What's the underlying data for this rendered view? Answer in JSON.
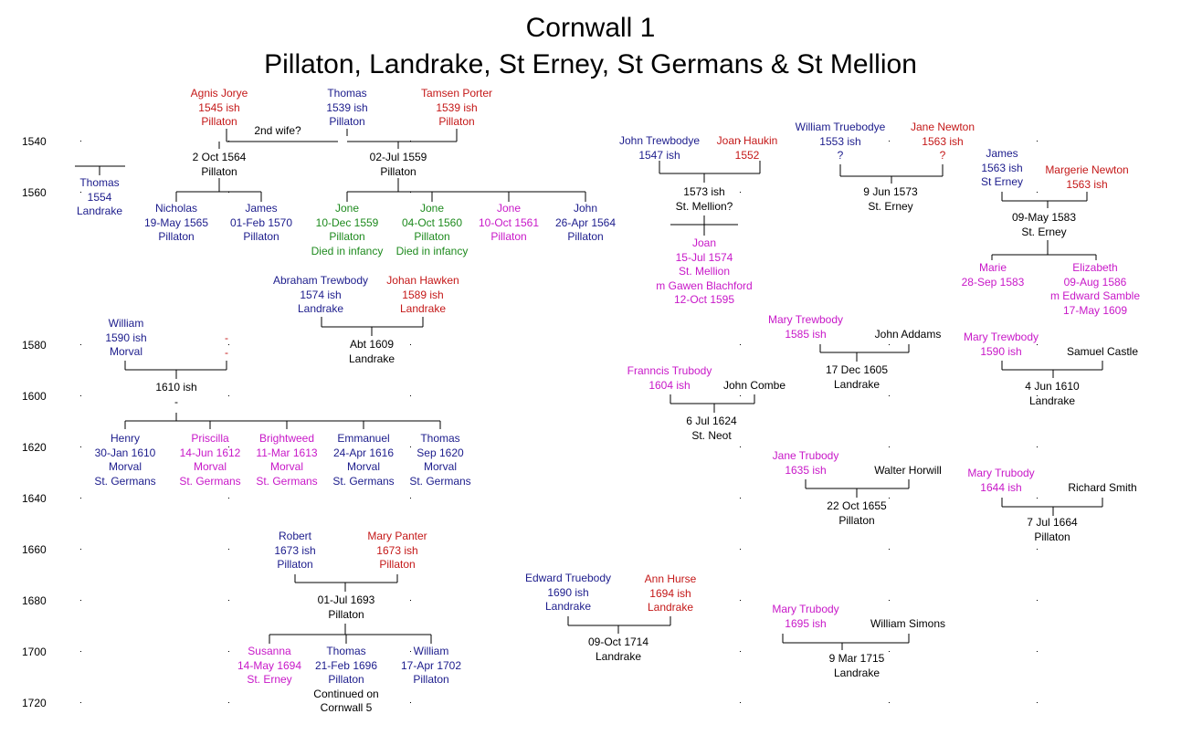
{
  "title": {
    "line1": "Cornwall 1",
    "line2": "Pillaton, Landrake, St Erney, St Germans & St Mellion"
  },
  "years": [
    "1540",
    "1560",
    "1580",
    "1600",
    "1620",
    "1640",
    "1660",
    "1680",
    "1700",
    "1720"
  ],
  "colors": {
    "male": "#1c1c8c",
    "female": "#c41818",
    "daughter": "#c818c8",
    "infant": "#1e8a1e",
    "event": "#000000"
  },
  "people": [
    {
      "lines": [
        "Agnis Jorye",
        "1545 ish",
        "Pillaton"
      ]
    },
    {
      "lines": [
        "Thomas",
        "1539 ish",
        "Pillaton"
      ]
    },
    {
      "lines": [
        "Tamsen Porter",
        "1539 ish",
        "Pillaton"
      ]
    },
    {
      "lines": [
        "2nd wife?"
      ]
    },
    {
      "lines": [
        "2 Oct 1564",
        "Pillaton"
      ]
    },
    {
      "lines": [
        "02-Jul 1559",
        "Pillaton"
      ]
    },
    {
      "lines": [
        "Thomas",
        "1554",
        "Landrake"
      ]
    },
    {
      "lines": [
        "Nicholas",
        "19-May 1565",
        "Pillaton"
      ]
    },
    {
      "lines": [
        "James",
        "01-Feb 1570",
        "Pillaton"
      ]
    },
    {
      "lines": [
        "Jone",
        "10-Dec 1559",
        "Pillaton",
        "Died in infancy"
      ]
    },
    {
      "lines": [
        "Jone",
        "04-Oct 1560",
        "Pillaton",
        "Died in infancy"
      ]
    },
    {
      "lines": [
        "Jone",
        "10-Oct 1561",
        "Pillaton"
      ]
    },
    {
      "lines": [
        "John",
        "26-Apr 1564",
        "Pillaton"
      ]
    },
    {
      "lines": [
        "John Trewbodye",
        "1547 ish"
      ]
    },
    {
      "lines": [
        "Joan Haukin",
        "1552"
      ]
    },
    {
      "lines": [
        "1573 ish",
        "St. Mellion?"
      ]
    },
    {
      "lines": [
        "Joan",
        "15-Jul 1574",
        "St. Mellion",
        "m Gawen Blachford",
        "12-Oct 1595"
      ]
    },
    {
      "lines": [
        "William Truebodye",
        "1553 ish",
        "?"
      ]
    },
    {
      "lines": [
        "Jane Newton",
        "1563 ish",
        "?"
      ]
    },
    {
      "lines": [
        "9 Jun 1573",
        "St. Erney"
      ]
    },
    {
      "lines": [
        "James",
        "1563 ish",
        "St Erney"
      ]
    },
    {
      "lines": [
        "Margerie Newton",
        "1563 ish"
      ]
    },
    {
      "lines": [
        "09-May 1583",
        "St. Erney"
      ]
    },
    {
      "lines": [
        "Marie",
        "28-Sep 1583"
      ]
    },
    {
      "lines": [
        "Elizabeth",
        "09-Aug 1586",
        "m Edward Samble",
        "17-May 1609"
      ]
    },
    {
      "lines": [
        "Abraham Trewbody",
        "1574 ish",
        "Landrake"
      ]
    },
    {
      "lines": [
        "Johan Hawken",
        "1589 ish",
        "Landrake"
      ]
    },
    {
      "lines": [
        "Abt 1609",
        "Landrake"
      ]
    },
    {
      "lines": [
        "William",
        "1590 ish",
        "Morval"
      ]
    },
    {
      "lines": [
        "-",
        "-"
      ]
    },
    {
      "lines": [
        "1610 ish",
        "-"
      ]
    },
    {
      "lines": [
        "Henry",
        "30-Jan 1610",
        "Morval",
        "St. Germans"
      ]
    },
    {
      "lines": [
        "Priscilla",
        "14-Jun 1612",
        "Morval",
        "St. Germans"
      ]
    },
    {
      "lines": [
        "Brightweed",
        "11-Mar 1613",
        "Morval",
        "St. Germans"
      ]
    },
    {
      "lines": [
        "Emmanuel",
        "24-Apr 1616",
        "Morval",
        "St. Germans"
      ]
    },
    {
      "lines": [
        "Thomas",
        "Sep 1620",
        "Morval",
        "St. Germans"
      ]
    },
    {
      "lines": [
        "Mary Trewbody",
        "1585 ish"
      ]
    },
    {
      "lines": [
        "John Addams"
      ]
    },
    {
      "lines": [
        "17 Dec 1605",
        "Landrake"
      ]
    },
    {
      "lines": [
        "Mary Trewbody",
        "1590 ish"
      ]
    },
    {
      "lines": [
        "Samuel Castle"
      ]
    },
    {
      "lines": [
        "4 Jun 1610",
        "Landrake"
      ]
    },
    {
      "lines": [
        "Franncis Trubody",
        "1604 ish"
      ]
    },
    {
      "lines": [
        "John Combe"
      ]
    },
    {
      "lines": [
        "6 Jul 1624",
        "St. Neot"
      ]
    },
    {
      "lines": [
        "Jane Trubody",
        "1635 ish"
      ]
    },
    {
      "lines": [
        "Walter Horwill"
      ]
    },
    {
      "lines": [
        "22 Oct 1655",
        "Pillaton"
      ]
    },
    {
      "lines": [
        "Mary Trubody",
        "1644 ish"
      ]
    },
    {
      "lines": [
        "Richard Smith"
      ]
    },
    {
      "lines": [
        "7 Jul 1664",
        "Pillaton"
      ]
    },
    {
      "lines": [
        "Robert",
        "1673 ish",
        "Pillaton"
      ]
    },
    {
      "lines": [
        "Mary Panter",
        "1673 ish",
        "Pillaton"
      ]
    },
    {
      "lines": [
        "01-Jul 1693",
        "Pillaton"
      ]
    },
    {
      "lines": [
        "Susanna",
        "14-May 1694",
        "St. Erney"
      ]
    },
    {
      "lines": [
        "Thomas",
        "21-Feb 1696",
        "Pillaton",
        "Continued on",
        "Cornwall 5"
      ]
    },
    {
      "lines": [
        "William",
        "17-Apr 1702",
        "Pillaton"
      ]
    },
    {
      "lines": [
        "Edward Truebody",
        "1690 ish",
        "Landrake"
      ]
    },
    {
      "lines": [
        "Ann Hurse",
        "1694 ish",
        "Landrake"
      ]
    },
    {
      "lines": [
        "09-Oct 1714",
        "Landrake"
      ]
    },
    {
      "lines": [
        "Mary Trubody",
        "1695 ish"
      ]
    },
    {
      "lines": [
        "William Simons"
      ]
    },
    {
      "lines": [
        "9 Mar 1715",
        "Landrake"
      ]
    }
  ]
}
